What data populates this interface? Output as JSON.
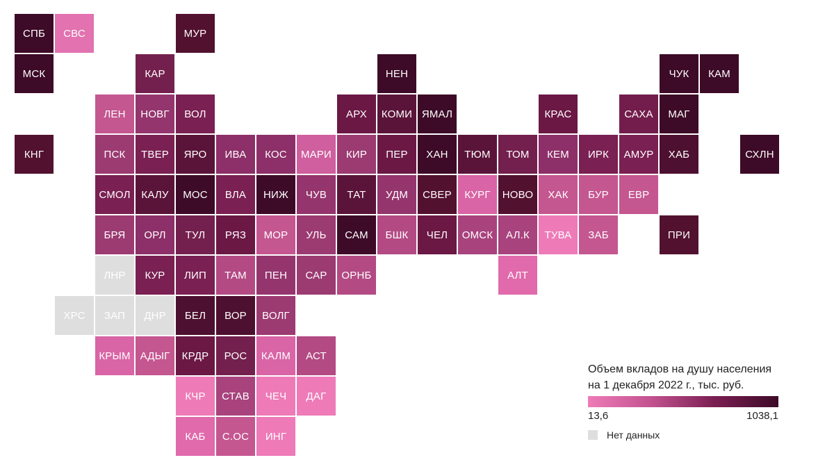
{
  "legend": {
    "title_line1": "Объем вкладов на душу населения",
    "title_line2": "на 1 декабря 2022 г., тыс. руб.",
    "min_label": "13,6",
    "max_label": "1038,1",
    "nodata_label": "Нет данных",
    "gradient_colors": [
      "#ee7bb8",
      "#c2528f",
      "#7a1e52",
      "#3d0a27"
    ],
    "nodata_color": "#dedede"
  },
  "regions": [
    {
      "label": "СПБ",
      "col": 0,
      "row": 0,
      "color": "#3d0a27"
    },
    {
      "label": "СВС",
      "col": 1,
      "row": 0,
      "color": "#e272b0"
    },
    {
      "label": "МУР",
      "col": 4,
      "row": 0,
      "color": "#52112f"
    },
    {
      "label": "МСК",
      "col": 0,
      "row": 1,
      "color": "#3d0a27"
    },
    {
      "label": "КАР",
      "col": 3,
      "row": 1,
      "color": "#74204e"
    },
    {
      "label": "НЕН",
      "col": 9,
      "row": 1,
      "color": "#3d0a27"
    },
    {
      "label": "ЧУК",
      "col": 16,
      "row": 1,
      "color": "#3d0a27"
    },
    {
      "label": "КАМ",
      "col": 17,
      "row": 1,
      "color": "#3d0a27"
    },
    {
      "label": "ЛЕН",
      "col": 2,
      "row": 2,
      "color": "#c45690"
    },
    {
      "label": "НОВГ",
      "col": 3,
      "row": 2,
      "color": "#95356e"
    },
    {
      "label": "ВОЛ",
      "col": 4,
      "row": 2,
      "color": "#7a2052"
    },
    {
      "label": "АРХ",
      "col": 8,
      "row": 2,
      "color": "#6b1845"
    },
    {
      "label": "КОМИ",
      "col": 9,
      "row": 2,
      "color": "#5b1439"
    },
    {
      "label": "ЯМАЛ",
      "col": 10,
      "row": 2,
      "color": "#3d0a27"
    },
    {
      "label": "КРАС",
      "col": 13,
      "row": 2,
      "color": "#6b1845"
    },
    {
      "label": "САХА",
      "col": 15,
      "row": 2,
      "color": "#731d4c"
    },
    {
      "label": "МАГ",
      "col": 16,
      "row": 2,
      "color": "#3d0a27"
    },
    {
      "label": "КНГ",
      "col": 0,
      "row": 3,
      "color": "#52112f"
    },
    {
      "label": "ПСК",
      "col": 2,
      "row": 3,
      "color": "#9c3a72"
    },
    {
      "label": "ТВЕР",
      "col": 3,
      "row": 3,
      "color": "#7a2052"
    },
    {
      "label": "ЯРО",
      "col": 4,
      "row": 3,
      "color": "#5b1439"
    },
    {
      "label": "ИВА",
      "col": 5,
      "row": 3,
      "color": "#8d2f68"
    },
    {
      "label": "КОС",
      "col": 6,
      "row": 3,
      "color": "#8d2f68"
    },
    {
      "label": "МАРИ",
      "col": 7,
      "row": 3,
      "color": "#cf5f9e"
    },
    {
      "label": "КИР",
      "col": 8,
      "row": 3,
      "color": "#9c3a72"
    },
    {
      "label": "ПЕР",
      "col": 9,
      "row": 3,
      "color": "#6b1845"
    },
    {
      "label": "ХАН",
      "col": 10,
      "row": 3,
      "color": "#3d0a27"
    },
    {
      "label": "ТЮМ",
      "col": 11,
      "row": 3,
      "color": "#5b1439"
    },
    {
      "label": "ТОМ",
      "col": 12,
      "row": 3,
      "color": "#74204e"
    },
    {
      "label": "КЕМ",
      "col": 13,
      "row": 3,
      "color": "#8d2f68"
    },
    {
      "label": "ИРК",
      "col": 14,
      "row": 3,
      "color": "#7a2052"
    },
    {
      "label": "АМУР",
      "col": 15,
      "row": 3,
      "color": "#7a2052"
    },
    {
      "label": "ХАБ",
      "col": 16,
      "row": 3,
      "color": "#4e1030"
    },
    {
      "label": "СХЛН",
      "col": 18,
      "row": 3,
      "color": "#3d0a27"
    },
    {
      "label": "СМОЛ",
      "col": 2,
      "row": 4,
      "color": "#7a2052"
    },
    {
      "label": "КАЛУ",
      "col": 3,
      "row": 4,
      "color": "#5b1439"
    },
    {
      "label": "МОС",
      "col": 4,
      "row": 4,
      "color": "#3d0a27"
    },
    {
      "label": "ВЛА",
      "col": 5,
      "row": 4,
      "color": "#7a2052"
    },
    {
      "label": "НИЖ",
      "col": 6,
      "row": 4,
      "color": "#3d0a27"
    },
    {
      "label": "ЧУВ",
      "col": 7,
      "row": 4,
      "color": "#95356e"
    },
    {
      "label": "ТАТ",
      "col": 8,
      "row": 4,
      "color": "#5b1439"
    },
    {
      "label": "УДМ",
      "col": 9,
      "row": 4,
      "color": "#95356e"
    },
    {
      "label": "СВЕР",
      "col": 10,
      "row": 4,
      "color": "#52112f"
    },
    {
      "label": "КУРГ",
      "col": 11,
      "row": 4,
      "color": "#d964a6"
    },
    {
      "label": "НОВО",
      "col": 12,
      "row": 4,
      "color": "#52112f"
    },
    {
      "label": "ХАК",
      "col": 13,
      "row": 4,
      "color": "#c45690"
    },
    {
      "label": "БУР",
      "col": 14,
      "row": 4,
      "color": "#c45690"
    },
    {
      "label": "ЕВР",
      "col": 15,
      "row": 4,
      "color": "#c45690"
    },
    {
      "label": "БРЯ",
      "col": 2,
      "row": 5,
      "color": "#9c3a72"
    },
    {
      "label": "ОРЛ",
      "col": 3,
      "row": 5,
      "color": "#8d2f68"
    },
    {
      "label": "ТУЛ",
      "col": 4,
      "row": 5,
      "color": "#74204e"
    },
    {
      "label": "РЯЗ",
      "col": 5,
      "row": 5,
      "color": "#6b1845"
    },
    {
      "label": "МОР",
      "col": 6,
      "row": 5,
      "color": "#c45690"
    },
    {
      "label": "УЛЬ",
      "col": 7,
      "row": 5,
      "color": "#9c3a72"
    },
    {
      "label": "САМ",
      "col": 8,
      "row": 5,
      "color": "#3d0a27"
    },
    {
      "label": "БШК",
      "col": 9,
      "row": 5,
      "color": "#b34a84"
    },
    {
      "label": "ЧЕЛ",
      "col": 10,
      "row": 5,
      "color": "#6b1845"
    },
    {
      "label": "ОМСК",
      "col": 11,
      "row": 5,
      "color": "#a8437e"
    },
    {
      "label": "АЛ.К",
      "col": 12,
      "row": 5,
      "color": "#a8437e"
    },
    {
      "label": "ТУВА",
      "col": 13,
      "row": 5,
      "color": "#ee7bb8"
    },
    {
      "label": "ЗАБ",
      "col": 14,
      "row": 5,
      "color": "#c45690"
    },
    {
      "label": "ПРИ",
      "col": 16,
      "row": 5,
      "color": "#52112f"
    },
    {
      "label": "ЛНР",
      "col": 2,
      "row": 6,
      "color": "#dedede",
      "nodata": true
    },
    {
      "label": "КУР",
      "col": 3,
      "row": 6,
      "color": "#7a2052"
    },
    {
      "label": "ЛИП",
      "col": 4,
      "row": 6,
      "color": "#7a2052"
    },
    {
      "label": "ТАМ",
      "col": 5,
      "row": 6,
      "color": "#b34a84"
    },
    {
      "label": "ПЕН",
      "col": 6,
      "row": 6,
      "color": "#95356e"
    },
    {
      "label": "САР",
      "col": 7,
      "row": 6,
      "color": "#9c3a72"
    },
    {
      "label": "ОРНБ",
      "col": 8,
      "row": 6,
      "color": "#b34a84"
    },
    {
      "label": "АЛТ",
      "col": 12,
      "row": 6,
      "color": "#e06aab"
    },
    {
      "label": "ХРС",
      "col": 1,
      "row": 7,
      "color": "#dedede",
      "nodata": true
    },
    {
      "label": "ЗАП",
      "col": 2,
      "row": 7,
      "color": "#dedede",
      "nodata": true
    },
    {
      "label": "ДНР",
      "col": 3,
      "row": 7,
      "color": "#dedede",
      "nodata": true
    },
    {
      "label": "БЕЛ",
      "col": 4,
      "row": 7,
      "color": "#4e1030"
    },
    {
      "label": "ВОР",
      "col": 5,
      "row": 7,
      "color": "#4e1030"
    },
    {
      "label": "ВОЛГ",
      "col": 6,
      "row": 7,
      "color": "#9c3a72"
    },
    {
      "label": "КРЫМ",
      "col": 2,
      "row": 8,
      "color": "#d964a6"
    },
    {
      "label": "АДЫГ",
      "col": 3,
      "row": 8,
      "color": "#c45690"
    },
    {
      "label": "КРДР",
      "col": 4,
      "row": 8,
      "color": "#6b1845"
    },
    {
      "label": "РОС",
      "col": 5,
      "row": 8,
      "color": "#74204e"
    },
    {
      "label": "КАЛМ",
      "col": 6,
      "row": 8,
      "color": "#d964a6"
    },
    {
      "label": "АСТ",
      "col": 7,
      "row": 8,
      "color": "#b34a84"
    },
    {
      "label": "КЧР",
      "col": 4,
      "row": 9,
      "color": "#ee7bb8"
    },
    {
      "label": "СТАВ",
      "col": 5,
      "row": 9,
      "color": "#a8437e"
    },
    {
      "label": "ЧЕЧ",
      "col": 6,
      "row": 9,
      "color": "#ee7bb8"
    },
    {
      "label": "ДАГ",
      "col": 7,
      "row": 9,
      "color": "#ee7bb8"
    },
    {
      "label": "КАБ",
      "col": 4,
      "row": 10,
      "color": "#e06aab"
    },
    {
      "label": "С.ОС",
      "col": 5,
      "row": 10,
      "color": "#c45690"
    },
    {
      "label": "ИНГ",
      "col": 6,
      "row": 10,
      "color": "#ee7bb8"
    }
  ]
}
